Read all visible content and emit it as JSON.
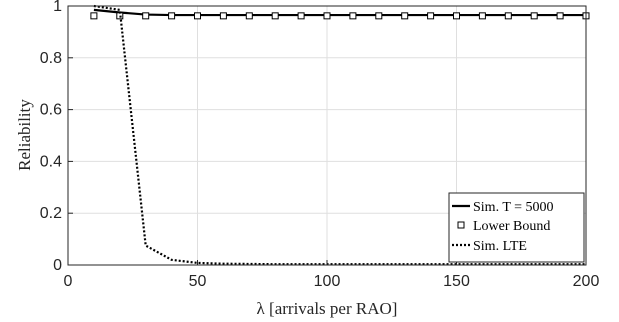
{
  "chart_data": {
    "type": "line",
    "xlabel": "λ [arrivals per RAO]",
    "ylabel": "Reliability",
    "xlim": [
      0,
      200
    ],
    "ylim": [
      0,
      1
    ],
    "xticks": [
      0,
      50,
      100,
      150,
      200
    ],
    "yticks": [
      0,
      0.2,
      0.4,
      0.6,
      0.8,
      1
    ],
    "xtick_labels": [
      "0",
      "50",
      "100",
      "150",
      "200"
    ],
    "ytick_labels": [
      "0",
      "0.2",
      "0.4",
      "0.6",
      "0.8",
      "1"
    ],
    "grid": true,
    "legend_position": "bottom-right",
    "series": [
      {
        "name": "Sim. T = 5000",
        "style": "solid",
        "marker": "none",
        "color": "#000000",
        "x": [
          10,
          20,
          30,
          40,
          50,
          60,
          70,
          80,
          90,
          100,
          110,
          120,
          130,
          140,
          150,
          160,
          170,
          180,
          190,
          200
        ],
        "y": [
          0.985,
          0.975,
          0.967,
          0.965,
          0.965,
          0.965,
          0.965,
          0.965,
          0.965,
          0.965,
          0.965,
          0.965,
          0.965,
          0.965,
          0.965,
          0.965,
          0.965,
          0.965,
          0.965,
          0.965
        ]
      },
      {
        "name": "Lower Bound",
        "style": "none",
        "marker": "square",
        "color": "#000000",
        "x": [
          10,
          20,
          30,
          40,
          50,
          60,
          70,
          80,
          90,
          100,
          110,
          120,
          130,
          140,
          150,
          160,
          170,
          180,
          190,
          200
        ],
        "y": [
          0.962,
          0.962,
          0.962,
          0.962,
          0.962,
          0.962,
          0.962,
          0.962,
          0.962,
          0.962,
          0.962,
          0.962,
          0.962,
          0.962,
          0.962,
          0.962,
          0.962,
          0.962,
          0.962,
          0.962
        ]
      },
      {
        "name": "Sim. LTE",
        "style": "dotted",
        "marker": "none",
        "color": "#000000",
        "x": [
          10,
          20,
          30,
          40,
          50,
          60,
          70,
          80,
          90,
          100,
          110,
          120,
          130,
          140,
          150,
          160,
          170,
          180,
          190,
          200
        ],
        "y": [
          1.0,
          0.985,
          0.075,
          0.02,
          0.008,
          0.005,
          0.004,
          0.003,
          0.003,
          0.003,
          0.003,
          0.003,
          0.003,
          0.003,
          0.003,
          0.003,
          0.003,
          0.003,
          0.003,
          0.003
        ]
      }
    ]
  }
}
